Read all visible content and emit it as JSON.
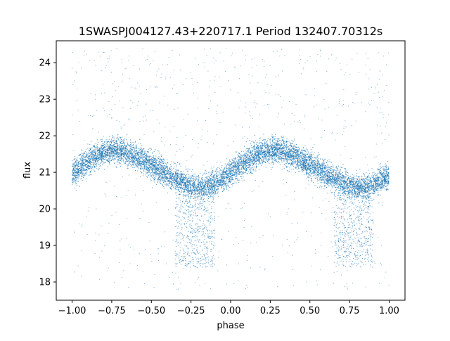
{
  "chart_data": {
    "type": "scatter",
    "title": "1SWASPJ004127.43+220717.1 Period 132407.70312s",
    "xlabel": "phase",
    "ylabel": "flux",
    "xlim": [
      -1.1,
      1.1
    ],
    "ylim": [
      17.5,
      24.6
    ],
    "x_ticks": [
      -1.0,
      -0.75,
      -0.5,
      -0.25,
      0.0,
      0.25,
      0.5,
      0.75,
      1.0
    ],
    "x_tick_labels": [
      "−1.00",
      "−0.75",
      "−0.50",
      "−0.25",
      "0.00",
      "0.25",
      "0.50",
      "0.75",
      "1.00"
    ],
    "y_ticks": [
      18,
      19,
      20,
      21,
      22,
      23,
      24
    ],
    "y_tick_labels": [
      "18",
      "19",
      "20",
      "21",
      "22",
      "23",
      "24"
    ],
    "grid": false,
    "legend": "none",
    "marker_color": "#1f77b4",
    "series": [
      {
        "color": "#1f77b4",
        "x_range": [
          -1.0,
          1.0
        ],
        "profile_phase": [
          -1.0,
          -0.9,
          -0.8,
          -0.75,
          -0.7,
          -0.6,
          -0.5,
          -0.4,
          -0.3,
          -0.25,
          -0.2,
          -0.1,
          0.0,
          0.1,
          0.2,
          0.25,
          0.3,
          0.4,
          0.5,
          0.6,
          0.7,
          0.75,
          0.8,
          0.9,
          1.0
        ],
        "profile_flux": [
          20.95,
          21.3,
          21.55,
          21.6,
          21.6,
          21.45,
          21.2,
          20.95,
          20.7,
          20.6,
          20.55,
          20.7,
          21.0,
          21.3,
          21.55,
          21.6,
          21.6,
          21.45,
          21.2,
          20.95,
          20.75,
          20.6,
          20.55,
          20.65,
          20.9
        ],
        "band_halfwidth": 0.55,
        "dips": [
          {
            "phase_range": [
              -0.35,
              -0.1
            ],
            "flux_min": 18.4
          },
          {
            "phase_range": [
              0.65,
              0.9
            ],
            "flux_min": 18.4
          }
        ],
        "outlier_flux_range": [
          17.8,
          24.4
        ]
      }
    ]
  }
}
